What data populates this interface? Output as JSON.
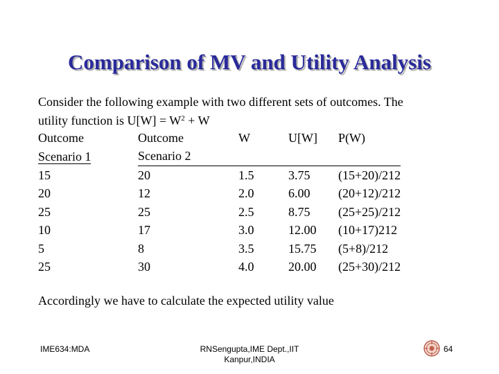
{
  "slide": {
    "title": "Comparison of MV and Utility Analysis",
    "intro_line1": "Consider the following example with two different sets of outcomes. The",
    "intro_line2_prefix": "utility function is U[W] = W",
    "intro_line2_sup": "2",
    "intro_line2_suffix": " + W",
    "conclusion": "Accordingly we have to calculate the expected utility value"
  },
  "table": {
    "header_row1": [
      "Outcome",
      "Outcome",
      "W",
      "U[W]",
      "P(W)"
    ],
    "header_row2": [
      "Scenario 1",
      "Scenario 2"
    ],
    "rows": [
      [
        "15",
        "20",
        "1.5",
        "3.75",
        "(15+20)/212"
      ],
      [
        "20",
        "12",
        "2.0",
        "6.00",
        "(20+12)/212"
      ],
      [
        "25",
        "25",
        "2.5",
        "8.75",
        "(25+25)/212"
      ],
      [
        "10",
        "17",
        "3.0",
        "12.00",
        "(10+17)212"
      ],
      [
        "5",
        "8",
        "3.5",
        "15.75",
        "(5+8)/212"
      ],
      [
        "25",
        "30",
        "4.0",
        "20.00",
        "(25+30)/212"
      ]
    ]
  },
  "footer": {
    "left": "IME634:MDA",
    "center_line1": "RNSengupta,IME Dept.,IIT",
    "center_line2": "Kanpur,INDIA",
    "page_number": "64",
    "logo_icon": "institute-seal-icon"
  }
}
